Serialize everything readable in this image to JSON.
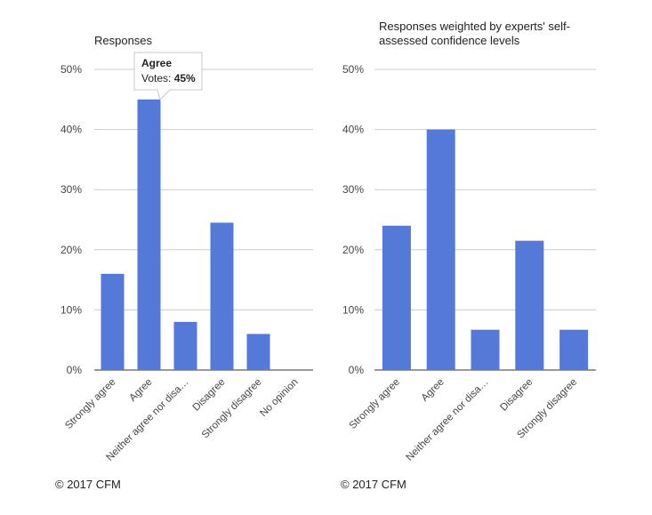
{
  "chart_data": [
    {
      "type": "bar",
      "title": "Responses",
      "categories": [
        "Strongly agree",
        "Agree",
        "Neither agree nor disa…",
        "Disagree",
        "Strongly disagree",
        "No opinion"
      ],
      "values": [
        16,
        45,
        8,
        24.5,
        6,
        0
      ],
      "ylim": [
        0,
        50
      ],
      "yticks": [
        "0%",
        "10%",
        "20%",
        "30%",
        "40%",
        "50%"
      ],
      "grid": true,
      "color": "#5479d8",
      "tooltip": {
        "category": "Agree",
        "label": "Votes: ",
        "value": "45%"
      },
      "footer": "© 2017 CFM"
    },
    {
      "type": "bar",
      "title_lines": [
        "Responses weighted by experts' self-",
        "assessed confidence levels"
      ],
      "categories": [
        "Strongly agree",
        "Agree",
        "Neither agree nor disa…",
        "Disagree",
        "Strongly disagree"
      ],
      "values": [
        24,
        40,
        6.7,
        21.5,
        6.7
      ],
      "ylim": [
        0,
        50
      ],
      "yticks": [
        "0%",
        "10%",
        "20%",
        "30%",
        "40%",
        "50%"
      ],
      "grid": true,
      "color": "#5479d8",
      "footer": "© 2017 CFM"
    }
  ]
}
